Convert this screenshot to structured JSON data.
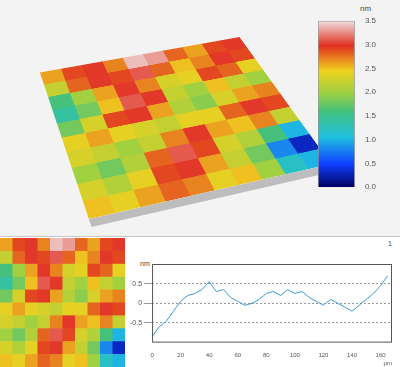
{
  "chart_data": [
    {
      "type": "heatmap",
      "cells": [
        [
          2.6,
          2.9,
          3.0,
          2.7,
          3.4,
          3.3,
          2.8,
          2.6,
          2.9,
          3.0
        ],
        [
          2.2,
          2.8,
          3.0,
          2.9,
          3.1,
          2.8,
          2.5,
          2.7,
          3.0,
          2.9
        ],
        [
          1.6,
          2.0,
          2.6,
          3.0,
          2.7,
          2.3,
          2.4,
          2.9,
          2.8,
          2.4
        ],
        [
          1.4,
          1.8,
          2.5,
          3.1,
          3.0,
          2.2,
          2.0,
          2.5,
          2.2,
          2.0
        ],
        [
          1.8,
          2.3,
          2.9,
          3.0,
          2.6,
          2.1,
          1.9,
          2.3,
          2.6,
          2.7
        ],
        [
          2.4,
          2.6,
          2.4,
          2.3,
          2.2,
          2.4,
          2.4,
          2.8,
          3.0,
          2.9
        ],
        [
          2.3,
          2.2,
          2.0,
          2.2,
          2.7,
          3.0,
          2.6,
          2.5,
          2.7,
          2.2
        ],
        [
          2.0,
          1.8,
          2.1,
          2.8,
          3.1,
          2.9,
          2.3,
          2.1,
          1.6,
          1.0
        ],
        [
          2.3,
          2.1,
          2.4,
          2.9,
          3.0,
          2.6,
          2.2,
          1.8,
          0.8,
          0.3
        ],
        [
          2.5,
          2.4,
          2.6,
          2.8,
          2.7,
          2.4,
          2.5,
          2.0,
          1.2,
          1.0
        ]
      ],
      "colorbar_range": [
        0,
        3.5
      ],
      "colorbar_ticks": [
        {
          "value": 0,
          "label": "0.0"
        },
        0.5,
        {
          "value": 1,
          "label": "1.0"
        },
        1.5,
        {
          "value": 2,
          "label": "2.0"
        },
        2.5,
        {
          "value": 3,
          "label": "3.0"
        },
        3.5
      ],
      "colorbar_title": "nm",
      "tick_labels": false
    },
    {
      "type": "line",
      "x": [
        0,
        5,
        10,
        15,
        20,
        25,
        30,
        35,
        40,
        45,
        50,
        55,
        60,
        65,
        70,
        75,
        80,
        85,
        90,
        95,
        100,
        105,
        110,
        115,
        120,
        125,
        130,
        135,
        140,
        145,
        150,
        155,
        160,
        165
      ],
      "values": [
        -0.85,
        -0.6,
        -0.45,
        -0.2,
        0.05,
        0.2,
        0.25,
        0.35,
        0.55,
        0.3,
        0.35,
        0.15,
        0.05,
        -0.05,
        0.0,
        0.1,
        0.25,
        0.3,
        0.2,
        0.35,
        0.25,
        0.3,
        0.15,
        0.05,
        -0.05,
        0.1,
        0.0,
        -0.1,
        -0.2,
        -0.05,
        0.1,
        0.25,
        0.45,
        0.7
      ],
      "color": "#3a9ad9",
      "xlim": [
        0,
        168
      ],
      "xticks": [
        0,
        20,
        40,
        60,
        80,
        100,
        120,
        140,
        160
      ],
      "ylim": [
        -1,
        1
      ],
      "yticks": [
        -0.5,
        0,
        0.5
      ],
      "x_label": "µm",
      "y_label": "nm",
      "annotation": "1",
      "grid": true
    }
  ]
}
